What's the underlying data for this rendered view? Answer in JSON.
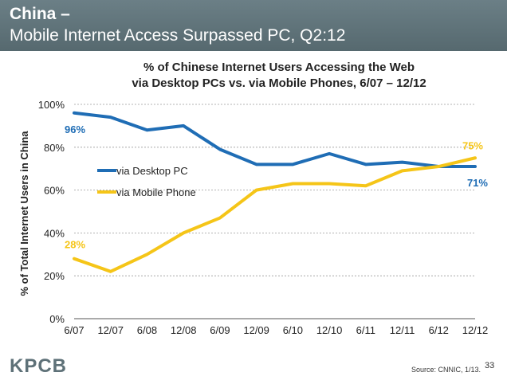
{
  "header": {
    "title": "China –",
    "subtitle": "Mobile Internet Access Surpassed PC, Q2:12"
  },
  "chart_data": {
    "type": "line",
    "title_line1": "% of Chinese Internet Users Accessing the Web",
    "title_line2": "via Desktop PCs vs. via Mobile Phones, 6/07 – 12/12",
    "ylabel": "% of Total Internet Users in China",
    "xlabel": "",
    "categories": [
      "6/07",
      "12/07",
      "6/08",
      "12/08",
      "6/09",
      "12/09",
      "6/10",
      "12/10",
      "6/11",
      "12/11",
      "6/12",
      "12/12"
    ],
    "ylim": [
      0,
      100
    ],
    "yticks": [
      "0%",
      "20%",
      "40%",
      "60%",
      "80%",
      "100%"
    ],
    "grid": "horizontal dashed",
    "legend_position": "left-center",
    "series": [
      {
        "name": "via Desktop PC",
        "color": "#1f6db5",
        "values": [
          96,
          94,
          88,
          90,
          79,
          72,
          72,
          77,
          72,
          73,
          71,
          71
        ],
        "start_label": "96%",
        "end_label": "71%"
      },
      {
        "name": "via Mobile Phone",
        "color": "#f5c518",
        "values": [
          28,
          22,
          30,
          40,
          47,
          60,
          63,
          63,
          62,
          69,
          71,
          75
        ],
        "start_label": "28%",
        "end_label": "75%"
      }
    ]
  },
  "footer": {
    "logo": "KPCB",
    "source": "Source: CNNIC, 1/13.",
    "page_number": "33"
  }
}
